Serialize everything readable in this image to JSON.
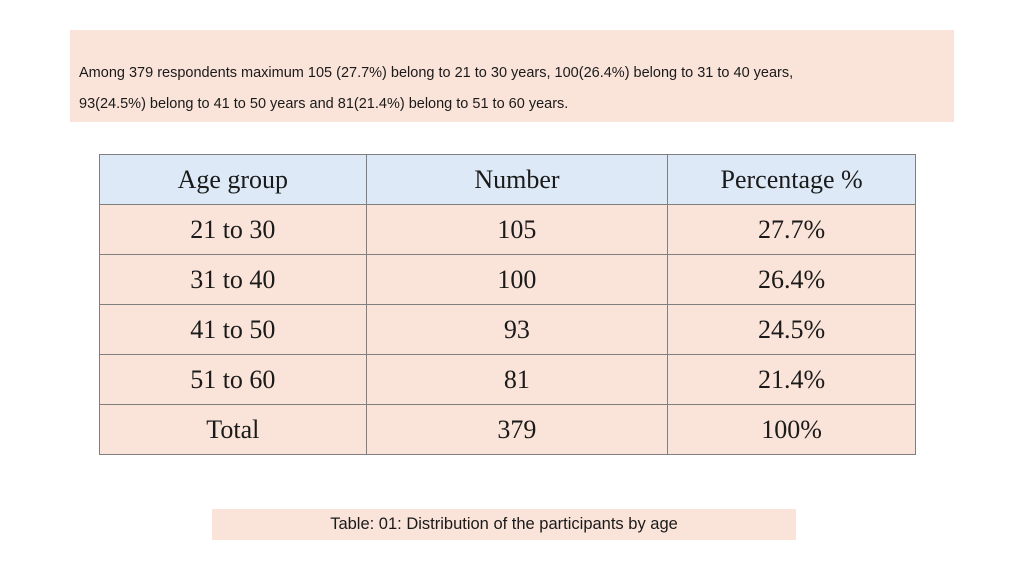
{
  "intro": {
    "line1": "Among 379 respondents maximum 105 (27.7%) belong to 21 to 30 years, 100(26.4%) belong to 31 to 40 years,",
    "line2": "93(24.5%) belong to 41 to 50 years and 81(21.4%) belong to 51 to 60 years."
  },
  "table": {
    "headers": [
      "Age group",
      "Number",
      "Percentage %"
    ],
    "rows": [
      [
        "21 to 30",
        "105",
        "27.7%"
      ],
      [
        "31 to 40",
        "100",
        "26.4%"
      ],
      [
        "41 to 50",
        "93",
        "24.5%"
      ],
      [
        "51 to 60",
        "81",
        "21.4%"
      ],
      [
        "Total",
        "379",
        "100%"
      ]
    ]
  },
  "caption": "Table: 01: Distribution of the participants by age",
  "colors": {
    "box_fill": "#fae3d9",
    "header_fill": "#dde9f6",
    "border": "#7f7f7f"
  }
}
